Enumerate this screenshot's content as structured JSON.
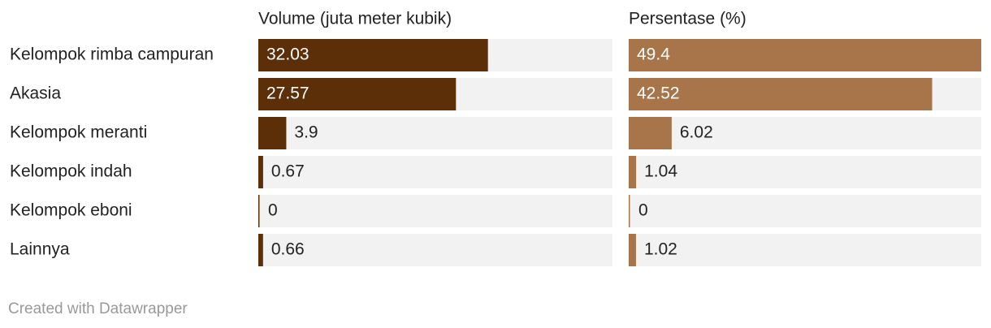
{
  "chart_data": {
    "type": "bar",
    "categories": [
      "Kelompok rimba campuran",
      "Akasia",
      "Kelompok meranti",
      "Kelompok indah",
      "Kelompok eboni",
      "Lainnya"
    ],
    "series": [
      {
        "name": "Volume (juta meter kubik)",
        "color": "#5c2f08",
        "values": [
          32.03,
          27.57,
          3.9,
          0.67,
          0,
          0.66
        ]
      },
      {
        "name": "Persentase (%)",
        "color": "#a8744a",
        "values": [
          49.4,
          42.52,
          6.02,
          1.04,
          0,
          1.02
        ]
      }
    ],
    "xlim": [
      0,
      49.4
    ],
    "credit": "Created with Datawrapper"
  }
}
